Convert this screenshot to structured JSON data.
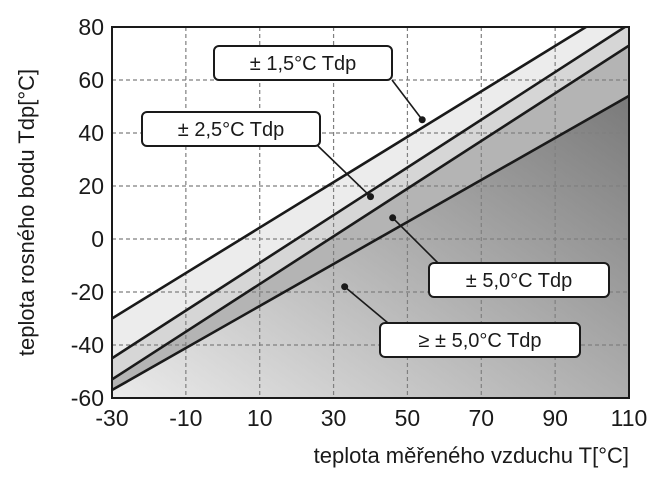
{
  "chart_data": {
    "type": "line",
    "title": "",
    "xlabel": "teplota měřeného vzduchu T[°C]",
    "ylabel": "teplota rosného bodu  Tdp[°C]",
    "xlim": [
      -30,
      110
    ],
    "ylim": [
      -60,
      80
    ],
    "x_ticks": [
      -30,
      -10,
      10,
      30,
      50,
      70,
      90,
      110
    ],
    "y_ticks": [
      -60,
      -40,
      -20,
      0,
      20,
      40,
      60,
      80
    ],
    "grid": true,
    "series": [
      {
        "x": [
          -30,
          110
        ],
        "y": [
          -30,
          90
        ]
      },
      {
        "x": [
          -30,
          110
        ],
        "y": [
          -45,
          81
        ]
      },
      {
        "x": [
          -30,
          110
        ],
        "y": [
          -53,
          73
        ]
      },
      {
        "x": [
          -30,
          110
        ],
        "y": [
          -57,
          54
        ]
      }
    ],
    "annotations": [
      {
        "text": "± 1,5°C Tdp",
        "point": [
          54,
          45
        ]
      },
      {
        "text": "± 2,5°C Tdp",
        "point": [
          40,
          16
        ]
      },
      {
        "text": "± 5,0°C Tdp",
        "point": [
          46,
          8
        ]
      },
      {
        "text": "≥ ± 5,0°C Tdp",
        "point": [
          33,
          -18
        ]
      }
    ],
    "colors": {
      "line": "#1a1a1a",
      "band1": "#ececec",
      "band2": "#d6d6d6",
      "band3": "#b4b4b4",
      "region_light": "#f4f4f4",
      "region_dark": "#7a7a7a",
      "grid": "#7f7f7f"
    }
  }
}
